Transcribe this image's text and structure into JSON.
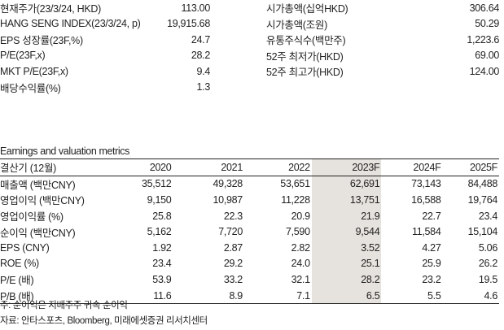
{
  "stats_left": [
    {
      "label": "현재주가(23/3/24, HKD)",
      "value": "113.00"
    },
    {
      "label": "HANG SENG INDEX(23/3/24, p)",
      "value": "19,915.68"
    },
    {
      "label": "EPS 성장률(23F,%)",
      "value": "24.7"
    },
    {
      "label": "P/E(23F,x)",
      "value": "28.2"
    },
    {
      "label": "MKT P/E(23F,x)",
      "value": "9.4"
    },
    {
      "label": "배당수익률(%)",
      "value": "1.3"
    }
  ],
  "stats_right": [
    {
      "label": "시가총액(십억HKD)",
      "value": "306.64"
    },
    {
      "label": "시가총액(조원)",
      "value": "50.29"
    },
    {
      "label": "유통주식수(백만주)",
      "value": "1,223.6"
    },
    {
      "label": "52주 최저가(HKD)",
      "value": "69.00"
    },
    {
      "label": "52주 최고가(HKD)",
      "value": "124.00"
    }
  ],
  "section_title": "Earnings and valuation metrics",
  "table": {
    "headers": [
      "결산기 (12월)",
      "2020",
      "2021",
      "2022",
      "2023F",
      "2024F",
      "2025F"
    ],
    "rows": [
      {
        "label": "매출액 (백만CNY)",
        "values": [
          "35,512",
          "49,328",
          "53,651",
          "62,691",
          "73,143",
          "84,488"
        ]
      },
      {
        "label": "영업이익 (백만CNY)",
        "values": [
          "9,150",
          "10,987",
          "11,228",
          "13,751",
          "16,588",
          "19,764"
        ]
      },
      {
        "label": "영업이익률 (%)",
        "values": [
          "25.8",
          "22.3",
          "20.9",
          "21.9",
          "22.7",
          "23.4"
        ]
      },
      {
        "label": "순이익 (백만CNY)",
        "values": [
          "5,162",
          "7,720",
          "7,590",
          "9,544",
          "11,584",
          "15,104"
        ]
      },
      {
        "label": "EPS (CNY)",
        "values": [
          "1.92",
          "2.87",
          "2.82",
          "3.52",
          "4.27",
          "5.06"
        ]
      },
      {
        "label": "ROE (%)",
        "values": [
          "23.4",
          "29.2",
          "24.0",
          "25.1",
          "25.9",
          "26.2"
        ]
      },
      {
        "label": "P/E (배)",
        "values": [
          "53.9",
          "33.2",
          "32.1",
          "28.2",
          "23.2",
          "19.5"
        ]
      },
      {
        "label": "P/B (배)",
        "values": [
          "11.6",
          "8.9",
          "7.1",
          "6.5",
          "5.5",
          "4.6"
        ]
      }
    ],
    "highlight_color": "#e6e2dd"
  },
  "notes": [
    "주: 순이익은 지배주주 귀속 순이익",
    "자료: 안타스포츠, Bloomberg, 미래에셋증권 리서치센터"
  ]
}
